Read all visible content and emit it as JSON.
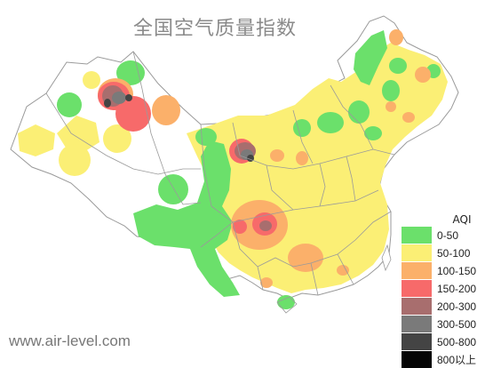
{
  "title": "全国空气质量指数",
  "watermark": "www.air-level.com",
  "legend": {
    "title": "AQI",
    "items": [
      {
        "label": "0-50",
        "color": "#6be06b"
      },
      {
        "label": "50-100",
        "color": "#fbef75"
      },
      {
        "label": "100-150",
        "color": "#fbb06a"
      },
      {
        "label": "150-200",
        "color": "#f76a6a"
      },
      {
        "label": "200-300",
        "color": "#a86e6e"
      },
      {
        "label": "300-500",
        "color": "#7a7a7a"
      },
      {
        "label": "500-800",
        "color": "#444444"
      },
      {
        "label": "800以上",
        "color": "#050505"
      }
    ]
  }
}
